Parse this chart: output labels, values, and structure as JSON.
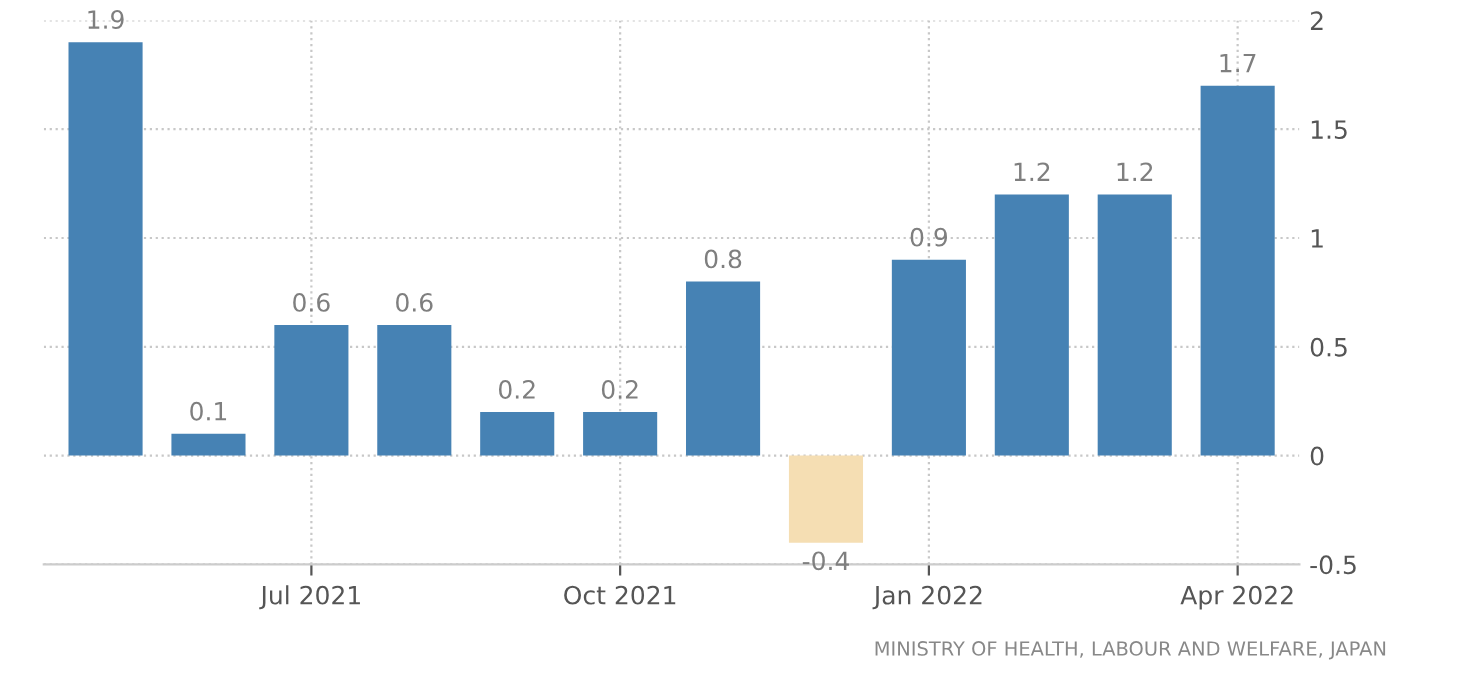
{
  "chart_data": {
    "type": "bar",
    "categories": [
      null,
      null,
      "Jul 2021",
      null,
      null,
      "Oct 2021",
      null,
      null,
      "Jan 2022",
      null,
      null,
      "Apr 2022"
    ],
    "values": [
      1.9,
      0.1,
      0.6,
      0.6,
      0.2,
      0.2,
      0.8,
      -0.4,
      0.9,
      1.2,
      1.2,
      1.7
    ],
    "colors": [
      "#4682b4",
      "#4682b4",
      "#4682b4",
      "#4682b4",
      "#4682b4",
      "#4682b4",
      "#4682b4",
      "#f5deb3",
      "#4682b4",
      "#4682b4",
      "#4682b4",
      "#4682b4"
    ],
    "ylim": [
      -0.5,
      2
    ],
    "yticks": [
      -0.5,
      0,
      0.5,
      1,
      1.5,
      2
    ],
    "grid": true,
    "data_labels": true,
    "annotations": [
      "MINISTRY OF HEALTH, LABOUR AND WELFARE, JAPAN"
    ]
  }
}
